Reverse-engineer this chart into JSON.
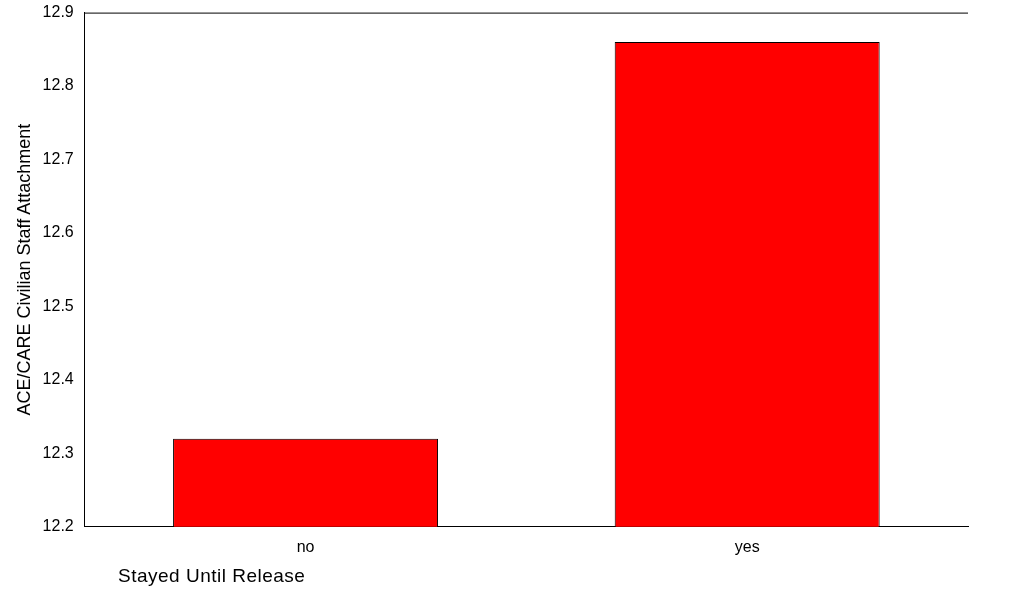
{
  "chart_data": {
    "type": "bar",
    "xlabel": "Stayed Until Release",
    "ylabel": "ACE/CARE Civilian Staff Attachment",
    "categories": [
      "no",
      "yes"
    ],
    "values": [
      12.32,
      12.86
    ],
    "color": "#ff0000",
    "ylim": [
      12.2,
      12.9
    ],
    "yticks": [
      12.2,
      12.3,
      12.4,
      12.5,
      12.6,
      12.7,
      12.8,
      12.9
    ],
    "grid": false,
    "legend": false
  }
}
